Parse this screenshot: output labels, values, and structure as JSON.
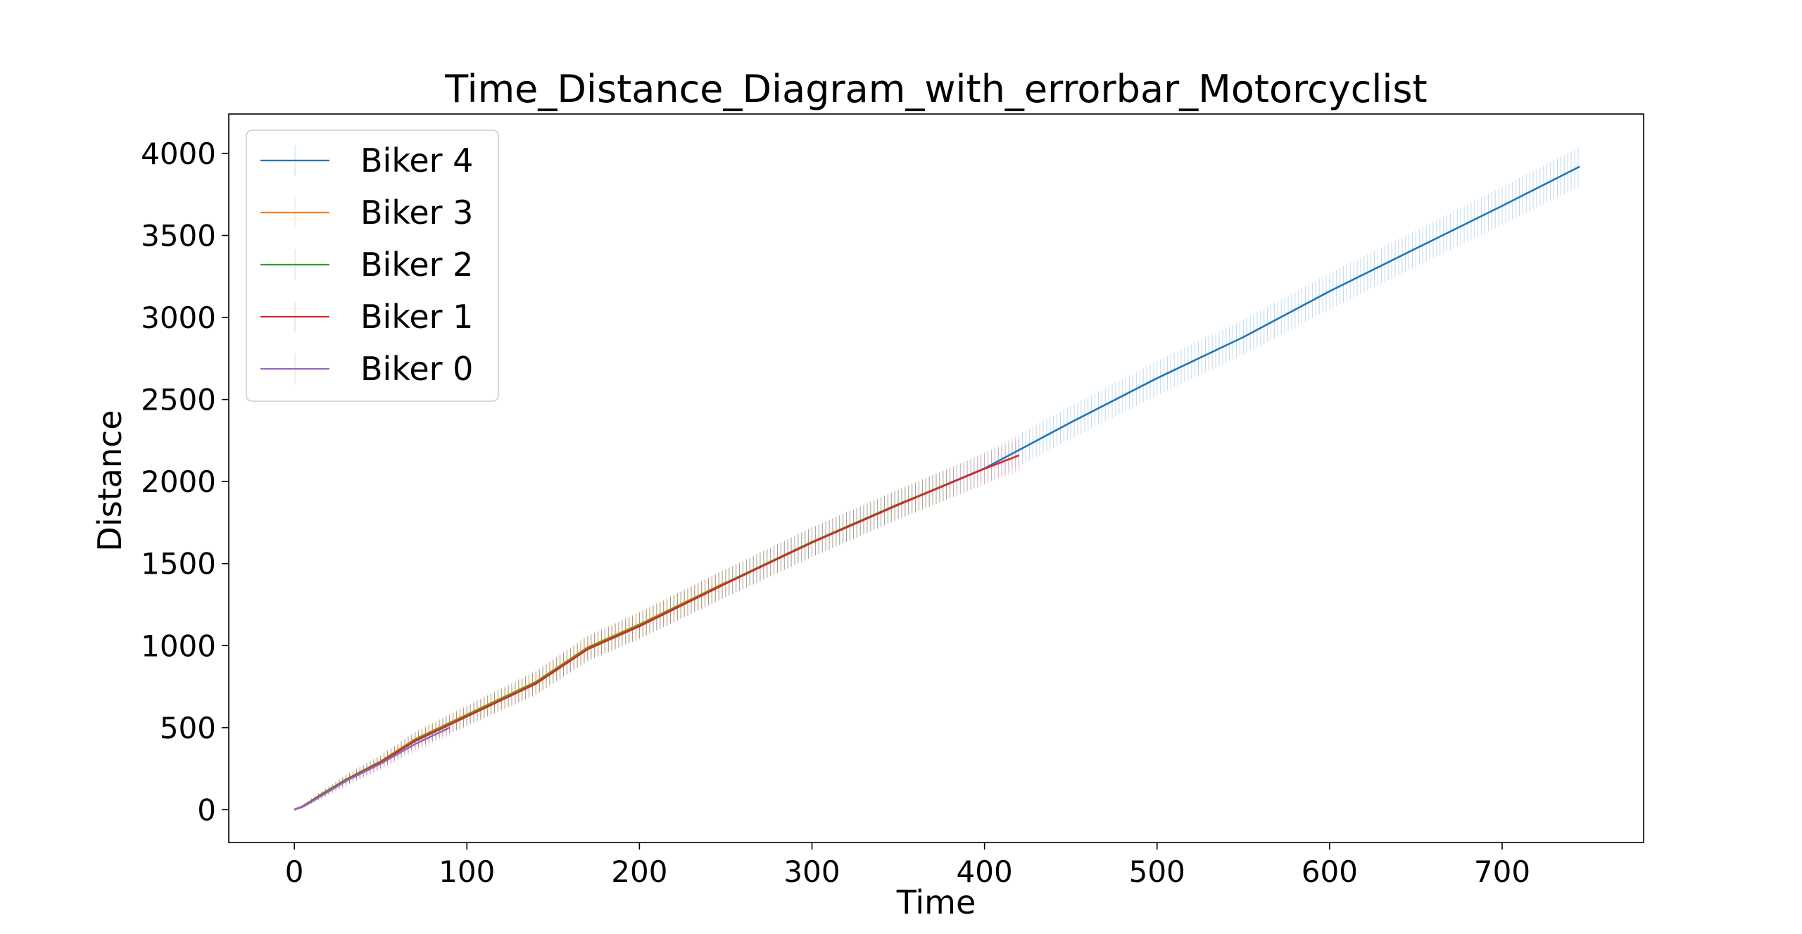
{
  "chart_data": {
    "type": "line",
    "title": "Time_Distance_Diagram_with_errorbar_Motorcyclist",
    "xlabel": "Time",
    "ylabel": "Distance",
    "xlim": [
      -38,
      782
    ],
    "ylim": [
      -200,
      4240
    ],
    "xticks": [
      0,
      100,
      200,
      300,
      400,
      500,
      600,
      700
    ],
    "yticks": [
      0,
      500,
      1000,
      1500,
      2000,
      2500,
      3000,
      3500,
      4000
    ],
    "x_tick_labels": [
      "0",
      "100",
      "200",
      "300",
      "400",
      "500",
      "600",
      "700"
    ],
    "y_tick_labels": [
      "0",
      "500",
      "1000",
      "1500",
      "2000",
      "2500",
      "3000",
      "3500",
      "4000"
    ],
    "legend_position": "top-left",
    "grid": false,
    "errorbar": true,
    "error_magnitude_note": "",
    "series": [
      {
        "name": "Biker 4",
        "color": "#1f77b4",
        "x": [
          0,
          5,
          15,
          30,
          50,
          70,
          100,
          140,
          170,
          200,
          250,
          300,
          350,
          400,
          450,
          500,
          550,
          600,
          650,
          700,
          745
        ],
        "y": [
          0,
          20,
          85,
          180,
          290,
          420,
          570,
          770,
          980,
          1120,
          1380,
          1630,
          1860,
          2080,
          2360,
          2630,
          2880,
          3160,
          3420,
          3680,
          3920
        ],
        "error": [
          0,
          10,
          20,
          30,
          40,
          50,
          60,
          70,
          75,
          80,
          85,
          90,
          90,
          95,
          100,
          105,
          105,
          110,
          110,
          115,
          120
        ]
      },
      {
        "name": "Biker 3",
        "color": "#ff7f0e",
        "x": [
          0,
          5,
          15,
          30,
          50,
          70,
          100,
          140,
          170,
          200,
          250
        ],
        "y": [
          0,
          22,
          90,
          185,
          295,
          430,
          580,
          780,
          990,
          1130,
          1385
        ],
        "error": [
          0,
          10,
          20,
          30,
          40,
          50,
          60,
          70,
          75,
          80,
          85
        ]
      },
      {
        "name": "Biker 2",
        "color": "#2ca02c",
        "x": [
          0,
          5,
          15,
          30,
          50,
          70,
          100,
          140,
          170,
          200,
          250,
          300,
          350,
          380
        ],
        "y": [
          0,
          21,
          88,
          183,
          292,
          425,
          575,
          775,
          985,
          1125,
          1382,
          1632,
          1862,
          1990
        ],
        "error": [
          0,
          10,
          20,
          30,
          40,
          50,
          60,
          70,
          75,
          80,
          85,
          90,
          90,
          92
        ]
      },
      {
        "name": "Biker 1",
        "color": "#d62728",
        "x": [
          0,
          5,
          15,
          30,
          50,
          70,
          100,
          140,
          170,
          200,
          250,
          300,
          350,
          400,
          420
        ],
        "y": [
          0,
          19,
          83,
          178,
          288,
          418,
          568,
          768,
          978,
          1118,
          1378,
          1628,
          1858,
          2078,
          2160
        ],
        "error": [
          0,
          10,
          20,
          30,
          40,
          50,
          60,
          70,
          75,
          80,
          85,
          90,
          90,
          95,
          96
        ]
      },
      {
        "name": "Biker 0",
        "color": "#9467bd",
        "x": [
          0,
          5,
          15,
          30,
          50,
          70,
          90
        ],
        "y": [
          0,
          18,
          80,
          175,
          280,
          400,
          500
        ],
        "error": [
          0,
          10,
          20,
          30,
          40,
          50,
          55
        ]
      }
    ]
  }
}
